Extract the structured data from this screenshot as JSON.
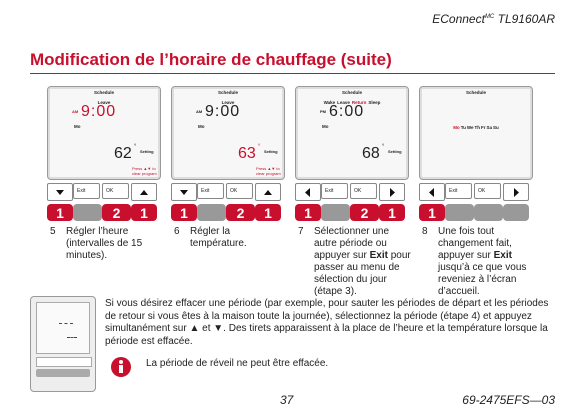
{
  "header": {
    "brand": "EConnect",
    "sup": "MC",
    "model": "TL9160AR"
  },
  "title": "Modification de l’horaire de chauffage (suite)",
  "screens": [
    {
      "schedule": "Schedule",
      "periods": [
        "Leave"
      ],
      "active": null,
      "ampm": "AM",
      "time": "9:00",
      "day": "Mo",
      "temp": "62",
      "deg": "°",
      "setting": "Setting",
      "hint": [
        "Press ▲▼ to",
        "clear program"
      ],
      "highlight": "time",
      "nav": "up-down",
      "exit": "Exit",
      "ok": "OK",
      "badges": [
        "1",
        null,
        "2",
        "1"
      ]
    },
    {
      "schedule": "Schedule",
      "periods": [
        "Leave"
      ],
      "active": null,
      "ampm": "AM",
      "time": "9:00",
      "day": "Mo",
      "temp": "63",
      "deg": "°",
      "setting": "Setting",
      "hint": [
        "Press ▲▼ to",
        "clear program"
      ],
      "highlight": "temp",
      "nav": "up-down",
      "exit": "Exit",
      "ok": "OK",
      "badges": [
        "1",
        null,
        "2",
        "1"
      ]
    },
    {
      "schedule": "Schedule",
      "periods": [
        "Wake",
        "Leave",
        "Return",
        "Sleep"
      ],
      "active": 2,
      "ampm": "PM",
      "time": "6:00",
      "day": "Mo",
      "temp": "68",
      "deg": "°",
      "setting": "Setting",
      "highlight": "period",
      "nav": "left-right",
      "exit": "Exit",
      "ok": "OK",
      "badges": [
        "1",
        null,
        "2",
        "1"
      ]
    },
    {
      "schedule": "Schedule",
      "days": [
        "Mo",
        "Tu",
        "We",
        "Th",
        "Fr",
        "Sa",
        "Su"
      ],
      "active_day": 0,
      "nav": "left-right",
      "exit": "Exit",
      "ok": "OK",
      "badges": [
        "1",
        null,
        null,
        null
      ]
    }
  ],
  "steps": [
    {
      "num": "5",
      "parts": [
        "Régler l’heure (intervalles de 15 minutes)."
      ]
    },
    {
      "num": "6",
      "parts": [
        "Régler la température."
      ]
    },
    {
      "num": "7",
      "parts": [
        "Sélectionner une autre période ou appuyer sur ",
        "Exit",
        " pour passer au menu de sélection du jour (étape 3)."
      ]
    },
    {
      "num": "8",
      "parts": [
        "Une fois tout changement fait, appuyer sur ",
        "Exit",
        " jusqu’à ce que vous reveniez à l’écran d’accueil."
      ]
    }
  ],
  "paragraph": "Si vous désirez effacer une période (par exemple, pour sauter les périodes de départ et les périodes de retour si vous êtes à la maison toute la journée), sélectionnez la période (étape 4) et appuyez simultanément sur ▲ et ▼. Des tirets apparaissent à la place de l’heure et la température lorsque la période est effacée.",
  "note": "La période de réveil ne peut être effacée.",
  "footer": {
    "page": "37",
    "code": "69-2475EFS—03"
  }
}
